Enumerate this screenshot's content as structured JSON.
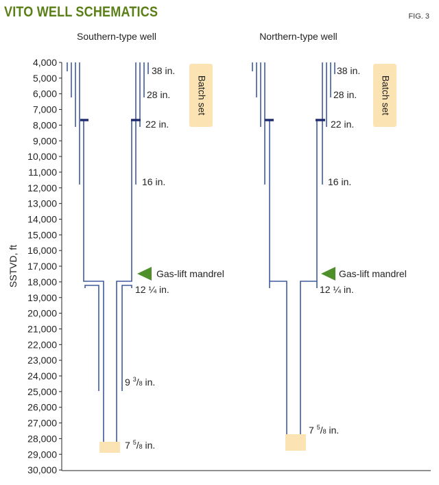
{
  "header": {
    "title": "VITO WELL SCHEMATICS",
    "figure": "FIG. 3"
  },
  "wells": [
    {
      "name": "Southern-type well"
    },
    {
      "name": "Northern-type well"
    }
  ],
  "axis": {
    "label": "SSTVD, ft",
    "ticks": [
      "4,000",
      "5,000",
      "6,000",
      "7,000",
      "8,000",
      "9,000",
      "10,000",
      "11,000",
      "12,000",
      "13,000",
      "14,000",
      "15,000",
      "16,000",
      "17,000",
      "18,000",
      "19,000",
      "20,000",
      "21,000",
      "22,000",
      "23,000",
      "24,000",
      "25,000",
      "26,000",
      "27,000",
      "28,000",
      "29,000",
      "30,000"
    ]
  },
  "labels": {
    "casing_38": "38 in.",
    "casing_28": "28 in.",
    "casing_22": "22 in.",
    "casing_16": "16 in.",
    "batch_set": "Batch set",
    "gas_lift": "Gas-lift mandrel",
    "liner_12": "12 ¼ in.",
    "liner_9_whole": "9",
    "liner_9_num": "3",
    "liner_9_den": "8",
    "liner_7_whole": "7",
    "liner_7_num": "5",
    "liner_7_den": "8",
    "in": "in."
  },
  "colors": {
    "casing": "#3d5a9e",
    "hanger": "#1e2a6e",
    "batch": "#fbe3b4",
    "arrow": "#4f8f2a",
    "title": "#5a7f17"
  }
}
